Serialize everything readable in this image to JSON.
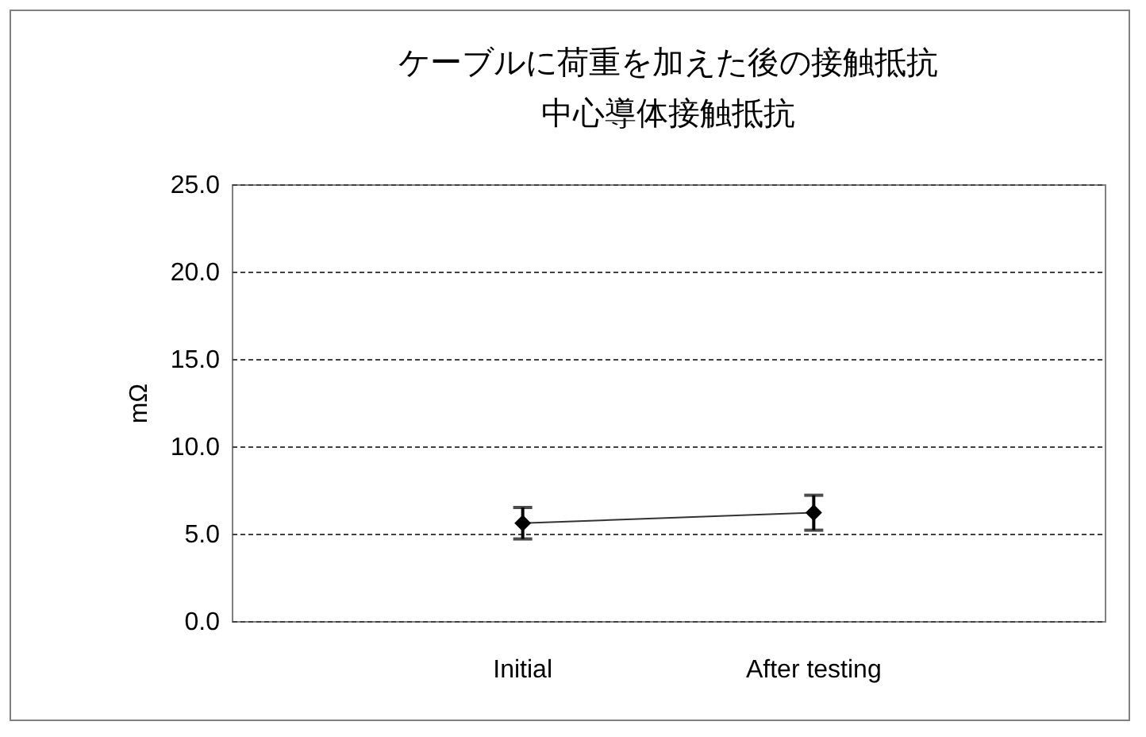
{
  "chart_data": {
    "type": "line",
    "title": "ケーブルに荷重を加えた後の接触抵抗",
    "subtitle": "中心導体接触抵抗",
    "ylabel": "mΩ",
    "categories": [
      "Initial",
      "After testing"
    ],
    "series": [
      {
        "color": "#000000",
        "values": [
          5.6,
          6.2
        ],
        "errors": [
          0.9,
          1.0
        ]
      }
    ],
    "ylim": [
      0,
      25
    ],
    "yticks": [
      {
        "value": 0,
        "label": "0.0"
      },
      {
        "value": 5,
        "label": "5.0"
      },
      {
        "value": 10,
        "label": "10.0"
      },
      {
        "value": 15,
        "label": "15.0"
      },
      {
        "value": 20,
        "label": "20.0"
      },
      {
        "value": 25,
        "label": "25.0"
      }
    ],
    "grid": "y",
    "marker": "diamond",
    "line_style": "solid",
    "legend": false
  }
}
